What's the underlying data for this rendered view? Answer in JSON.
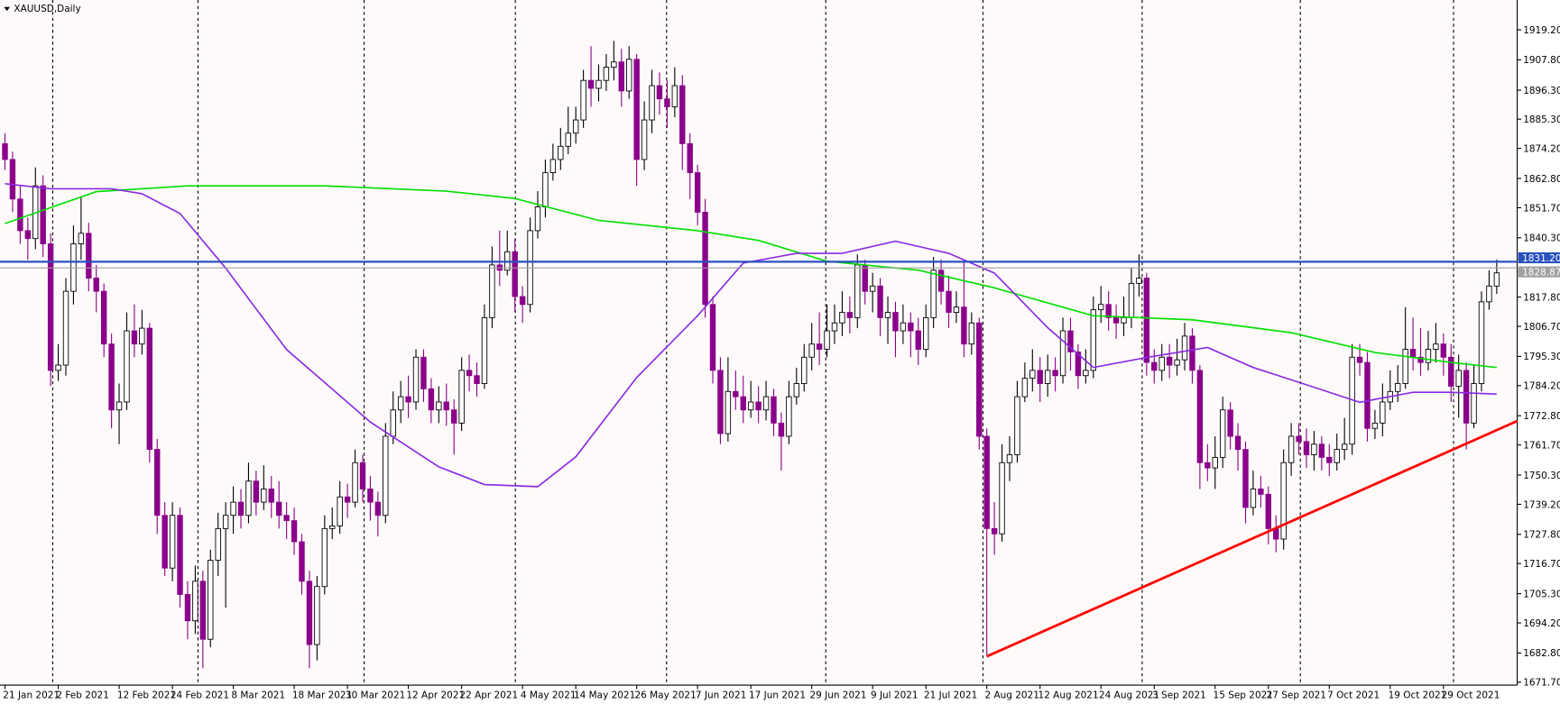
{
  "chart_data": {
    "type": "candlestick",
    "title": "XAUUSD,Daily",
    "up_color": "#ffffff",
    "down_color": "#8b008b",
    "categories": [
      "21 Jan 2021",
      null,
      null,
      null,
      null,
      null,
      null,
      "2 Feb 2021",
      null,
      null,
      null,
      null,
      null,
      null,
      null,
      "12 Feb 2021",
      null,
      null,
      null,
      null,
      null,
      null,
      "24 Feb 2021",
      null,
      null,
      null,
      null,
      null,
      null,
      null,
      "8 Mar 2021",
      null,
      null,
      null,
      null,
      null,
      null,
      null,
      "18 Mar 2021",
      null,
      null,
      null,
      null,
      null,
      null,
      "30 Mar 2021",
      null,
      null,
      null,
      null,
      null,
      null,
      null,
      "12 Apr 2021",
      null,
      null,
      null,
      null,
      null,
      null,
      "22 Apr 2021",
      null,
      null,
      null,
      null,
      null,
      null,
      null,
      "4 May 2021",
      null,
      null,
      null,
      null,
      null,
      null,
      "14 May 2021",
      null,
      null,
      null,
      null,
      null,
      null,
      null,
      "26 May 2021",
      null,
      null,
      null,
      null,
      null,
      null,
      null,
      "7 Jun 2021",
      null,
      null,
      null,
      null,
      null,
      null,
      "17 Jun 2021",
      null,
      null,
      null,
      null,
      null,
      null,
      null,
      "29 Jun 2021",
      null,
      null,
      null,
      null,
      null,
      null,
      null,
      "9 Jul 2021",
      null,
      null,
      null,
      null,
      null,
      null,
      "21 Jul 2021",
      null,
      null,
      null,
      null,
      null,
      null,
      null,
      "2 Aug 2021",
      null,
      null,
      null,
      null,
      null,
      null,
      "12 Aug 2021",
      null,
      null,
      null,
      null,
      null,
      null,
      null,
      "24 Aug 2021",
      null,
      null,
      null,
      null,
      null,
      null,
      "3 Sep 2021",
      null,
      null,
      null,
      null,
      null,
      null,
      null,
      "15 Sep 2021",
      null,
      null,
      null,
      null,
      null,
      null,
      "27 Sep 2021",
      null,
      null,
      null,
      null,
      null,
      null,
      null,
      "7 Oct 2021",
      null,
      null,
      null,
      null,
      null,
      null,
      null,
      "19 Oct 2021",
      null,
      null,
      null,
      null,
      null,
      null,
      "29 Oct 2021",
      null,
      null,
      null,
      null,
      null,
      null,
      null
    ],
    "open": [
      1876,
      1870,
      1855,
      1843,
      1840,
      1860,
      1838,
      1790,
      1792,
      1820,
      1838,
      1842,
      1825,
      1820,
      1800,
      1775,
      1778,
      1805,
      1800,
      1806,
      1760,
      1735,
      1715,
      1735,
      1705,
      1695,
      1710,
      1688,
      1718,
      1730,
      1735,
      1740,
      1735,
      1748,
      1740,
      1745,
      1740,
      1735,
      1733,
      1725,
      1710,
      1686,
      1708,
      1730,
      1731,
      1742,
      1740,
      1755,
      1745,
      1740,
      1735,
      1765,
      1775,
      1780,
      1778,
      1795,
      1783,
      1775,
      1778,
      1775,
      1770,
      1790,
      1788,
      1785,
      1810,
      1830,
      1828,
      1835,
      1818,
      1815,
      1843,
      1852,
      1865,
      1870,
      1875,
      1880,
      1885,
      1900,
      1897,
      1900,
      1905,
      1907,
      1896,
      1908,
      1870,
      1885,
      1898,
      1893,
      1890,
      1898,
      1876,
      1865,
      1850,
      1815,
      1790,
      1766,
      1782,
      1780,
      1775,
      1778,
      1775,
      1780,
      1770,
      1765,
      1780,
      1785,
      1795,
      1800,
      1798,
      1805,
      1808,
      1812,
      1810,
      1830,
      1820,
      1822,
      1810,
      1812,
      1805,
      1808,
      1805,
      1798,
      1810,
      1828,
      1820,
      1812,
      1814,
      1800,
      1808,
      1765,
      1730,
      1728,
      1755,
      1758,
      1780,
      1787,
      1790,
      1785,
      1790,
      1788,
      1805,
      1797,
      1788,
      1790,
      1813,
      1815,
      1810,
      1808,
      1810,
      1823,
      1825,
      1793,
      1790,
      1795,
      1792,
      1794,
      1803,
      1790,
      1755,
      1753,
      1757,
      1775,
      1765,
      1760,
      1738,
      1745,
      1743,
      1730,
      1726,
      1755,
      1765,
      1763,
      1758,
      1762,
      1757,
      1755,
      1760,
      1762,
      1795,
      1793,
      1768,
      1770,
      1778,
      1782,
      1785,
      1798,
      1795,
      1793,
      1798,
      1800,
      1795,
      1784,
      1790,
      1770,
      1785,
      1816,
      1822
    ],
    "high": [
      1880,
      1873,
      1860,
      1848,
      1867,
      1864,
      1842,
      1800,
      1825,
      1845,
      1856,
      1846,
      1830,
      1823,
      1804,
      1785,
      1812,
      1815,
      1813,
      1808,
      1764,
      1740,
      1740,
      1738,
      1710,
      1716,
      1714,
      1722,
      1736,
      1740,
      1746,
      1745,
      1755,
      1752,
      1754,
      1750,
      1748,
      1740,
      1738,
      1728,
      1714,
      1712,
      1735,
      1738,
      1748,
      1747,
      1760,
      1758,
      1750,
      1744,
      1770,
      1782,
      1786,
      1788,
      1798,
      1798,
      1787,
      1784,
      1785,
      1779,
      1795,
      1796,
      1793,
      1815,
      1837,
      1843,
      1843,
      1840,
      1822,
      1848,
      1858,
      1870,
      1876,
      1882,
      1890,
      1890,
      1904,
      1913,
      1906,
      1910,
      1915,
      1912,
      1913,
      1910,
      1892,
      1904,
      1903,
      1900,
      1905,
      1902,
      1880,
      1868,
      1855,
      1818,
      1795,
      1795,
      1790,
      1788,
      1786,
      1784,
      1786,
      1783,
      1774,
      1786,
      1791,
      1800,
      1808,
      1812,
      1815,
      1815,
      1820,
      1818,
      1834,
      1832,
      1827,
      1825,
      1818,
      1816,
      1815,
      1812,
      1810,
      1815,
      1833,
      1832,
      1826,
      1820,
      1832,
      1812,
      1810,
      1768,
      1740,
      1762,
      1765,
      1786,
      1793,
      1798,
      1795,
      1796,
      1795,
      1810,
      1810,
      1800,
      1798,
      1818,
      1822,
      1820,
      1815,
      1818,
      1829,
      1834,
      1827,
      1798,
      1800,
      1800,
      1802,
      1808,
      1806,
      1792,
      1762,
      1765,
      1780,
      1778,
      1770,
      1763,
      1752,
      1750,
      1746,
      1735,
      1760,
      1770,
      1770,
      1768,
      1767,
      1765,
      1762,
      1766,
      1772,
      1800,
      1800,
      1797,
      1775,
      1785,
      1790,
      1792,
      1814,
      1810,
      1806,
      1805,
      1808,
      1804,
      1800,
      1796,
      1793,
      1792,
      1820,
      1828,
      1832
    ],
    "low": [
      1866,
      1850,
      1838,
      1832,
      1836,
      1833,
      1784,
      1786,
      1788,
      1815,
      1832,
      1820,
      1812,
      1795,
      1768,
      1762,
      1775,
      1795,
      1796,
      1755,
      1728,
      1712,
      1710,
      1700,
      1688,
      1690,
      1677,
      1685,
      1712,
      1700,
      1728,
      1730,
      1732,
      1735,
      1737,
      1734,
      1730,
      1726,
      1720,
      1705,
      1677,
      1680,
      1705,
      1726,
      1728,
      1734,
      1738,
      1740,
      1733,
      1727,
      1732,
      1762,
      1770,
      1772,
      1775,
      1778,
      1770,
      1770,
      1769,
      1758,
      1767,
      1782,
      1780,
      1783,
      1806,
      1822,
      1826,
      1812,
      1808,
      1812,
      1840,
      1848,
      1862,
      1866,
      1872,
      1876,
      1882,
      1890,
      1892,
      1896,
      1900,
      1890,
      1893,
      1860,
      1866,
      1880,
      1887,
      1882,
      1886,
      1866,
      1855,
      1845,
      1810,
      1785,
      1762,
      1763,
      1775,
      1770,
      1772,
      1770,
      1771,
      1765,
      1752,
      1762,
      1777,
      1782,
      1790,
      1792,
      1795,
      1800,
      1803,
      1804,
      1806,
      1815,
      1812,
      1803,
      1800,
      1795,
      1800,
      1795,
      1792,
      1795,
      1806,
      1815,
      1806,
      1808,
      1795,
      1796,
      1760,
      1682,
      1720,
      1725,
      1748,
      1755,
      1778,
      1782,
      1778,
      1780,
      1782,
      1785,
      1790,
      1783,
      1785,
      1787,
      1808,
      1805,
      1802,
      1803,
      1806,
      1818,
      1788,
      1785,
      1786,
      1787,
      1788,
      1790,
      1785,
      1745,
      1748,
      1745,
      1753,
      1760,
      1752,
      1732,
      1735,
      1738,
      1724,
      1721,
      1722,
      1750,
      1758,
      1753,
      1752,
      1752,
      1750,
      1752,
      1756,
      1758,
      1788,
      1763,
      1764,
      1765,
      1775,
      1778,
      1783,
      1790,
      1788,
      1790,
      1793,
      1788,
      1778,
      1772,
      1760,
      1768,
      1782,
      1813,
      1819
    ],
    "close": [
      1870,
      1855,
      1843,
      1840,
      1860,
      1838,
      1790,
      1792,
      1820,
      1838,
      1842,
      1825,
      1820,
      1800,
      1775,
      1778,
      1805,
      1800,
      1806,
      1760,
      1735,
      1715,
      1735,
      1705,
      1695,
      1710,
      1688,
      1718,
      1730,
      1735,
      1740,
      1735,
      1748,
      1740,
      1745,
      1740,
      1735,
      1733,
      1725,
      1710,
      1686,
      1708,
      1730,
      1731,
      1742,
      1740,
      1755,
      1745,
      1740,
      1735,
      1765,
      1775,
      1780,
      1778,
      1795,
      1783,
      1775,
      1778,
      1775,
      1770,
      1790,
      1788,
      1785,
      1810,
      1830,
      1828,
      1835,
      1818,
      1815,
      1843,
      1852,
      1865,
      1870,
      1875,
      1880,
      1885,
      1900,
      1897,
      1900,
      1905,
      1907,
      1896,
      1908,
      1870,
      1885,
      1898,
      1893,
      1890,
      1898,
      1876,
      1865,
      1850,
      1815,
      1790,
      1766,
      1782,
      1780,
      1775,
      1778,
      1775,
      1780,
      1770,
      1765,
      1780,
      1785,
      1795,
      1800,
      1798,
      1805,
      1808,
      1812,
      1810,
      1830,
      1820,
      1822,
      1810,
      1812,
      1805,
      1808,
      1805,
      1798,
      1810,
      1828,
      1820,
      1812,
      1814,
      1800,
      1808,
      1765,
      1730,
      1728,
      1755,
      1758,
      1780,
      1787,
      1790,
      1785,
      1790,
      1788,
      1805,
      1797,
      1788,
      1790,
      1813,
      1815,
      1810,
      1808,
      1810,
      1823,
      1825,
      1793,
      1790,
      1795,
      1792,
      1794,
      1803,
      1790,
      1755,
      1753,
      1757,
      1775,
      1765,
      1760,
      1738,
      1745,
      1743,
      1730,
      1726,
      1755,
      1765,
      1763,
      1758,
      1762,
      1757,
      1755,
      1760,
      1762,
      1795,
      1793,
      1768,
      1770,
      1778,
      1782,
      1785,
      1798,
      1795,
      1793,
      1798,
      1800,
      1795,
      1784,
      1790,
      1770,
      1785,
      1816,
      1822,
      1827
    ],
    "lines": [
      {
        "color": "#00e000",
        "x": [
          0,
          12,
          24,
          42,
          58,
          67,
          78,
          91,
          99,
          108,
          120,
          130,
          143,
          156,
          169,
          180,
          190,
          196
        ],
        "values": [
          1845.7,
          1857.8,
          1860,
          1860,
          1858,
          1855.2,
          1846.9,
          1843,
          1839.3,
          1831.4,
          1828,
          1821.3,
          1810.7,
          1809.2,
          1804.3,
          1796.8,
          1793,
          1791.1
        ]
      },
      {
        "color": "#8a2be2",
        "x": [
          0,
          6,
          14,
          18,
          23,
          29,
          37,
          48,
          57,
          63,
          70,
          75,
          83,
          91,
          97,
          104,
          110,
          117,
          124,
          130,
          137,
          143,
          150,
          158,
          164,
          172,
          178,
          185,
          190,
          196
        ],
        "values": [
          1860.8,
          1858.9,
          1858.9,
          1857,
          1849.5,
          1828.8,
          1797.9,
          1770.4,
          1753.4,
          1746.7,
          1745.9,
          1757.2,
          1787.3,
          1810.7,
          1830.7,
          1834.4,
          1834.4,
          1839,
          1834.4,
          1826.9,
          1806.2,
          1791.1,
          1794.9,
          1798.7,
          1791.1,
          1783.6,
          1777.9,
          1781.7,
          1781.7,
          1781
        ]
      },
      {
        "color": "#ff0000",
        "x": [
          129,
          198.7
        ],
        "values": [
          1681.5,
          1770.8
        ]
      }
    ],
    "hlines": [
      {
        "value": 1831.2,
        "label": "1831.20",
        "color": "#2a52be"
      },
      {
        "value": 1828.87,
        "label": "1828.87",
        "color": "#a0a0a0"
      }
    ],
    "ylim": [
      1670.6,
      1930.5
    ],
    "yticks": [
      {
        "value": 1919.2,
        "label": "1919.20"
      },
      {
        "value": 1907.8,
        "label": "1907.80"
      },
      {
        "value": 1896.3,
        "label": "1896.30"
      },
      {
        "value": 1885.3,
        "label": "1885.30"
      },
      {
        "value": 1874.2,
        "label": "1874.20"
      },
      {
        "value": 1862.8,
        "label": "1862.80"
      },
      {
        "value": 1851.7,
        "label": "1851.70"
      },
      {
        "value": 1840.3,
        "label": "1840.30"
      },
      {
        "value": 1817.8,
        "label": "1817.80"
      },
      {
        "value": 1806.7,
        "label": "1806.70"
      },
      {
        "value": 1795.3,
        "label": "1795.30"
      },
      {
        "value": 1784.2,
        "label": "1784.20"
      },
      {
        "value": 1772.8,
        "label": "1772.80"
      },
      {
        "value": 1761.7,
        "label": "1761.70"
      },
      {
        "value": 1750.3,
        "label": "1750.30"
      },
      {
        "value": 1739.2,
        "label": "1739.20"
      },
      {
        "value": 1727.8,
        "label": "1727.80"
      },
      {
        "value": 1716.7,
        "label": "1716.70"
      },
      {
        "value": 1705.3,
        "label": "1705.30"
      },
      {
        "value": 1694.2,
        "label": "1694.20"
      },
      {
        "value": 1682.8,
        "label": "1682.80"
      },
      {
        "value": 1671.7,
        "label": "1671.70"
      }
    ]
  }
}
